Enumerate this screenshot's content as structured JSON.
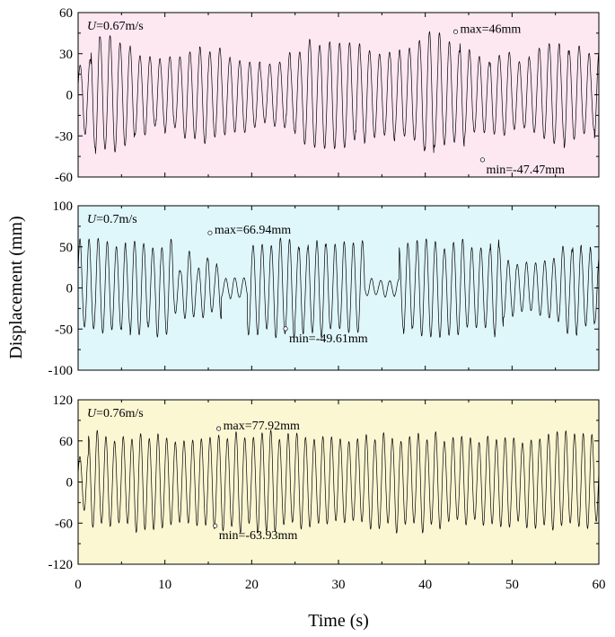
{
  "chart_data": {
    "type": "line",
    "xlabel": "Time  (s)",
    "ylabel": "Displacement  (mm)",
    "xlim": [
      0,
      60
    ],
    "x_ticks": [
      "0",
      "10",
      "20",
      "30",
      "40",
      "50",
      "60"
    ],
    "panels": [
      {
        "label_var": "U",
        "label_value": "=0.67m/s",
        "background": "#fde7f1",
        "ylim": [
          -60,
          60
        ],
        "y_ticks": [
          {
            "value": 60,
            "label": "60"
          },
          {
            "value": 30,
            "label": "30"
          },
          {
            "value": 0,
            "label": "0"
          },
          {
            "value": -30,
            "label": "-30"
          },
          {
            "value": -60,
            "label": "-60"
          }
        ],
        "series": [
          {
            "name": "displacement",
            "period_s": 1.15,
            "approx_amplitude_mm": [
              20,
              46
            ]
          }
        ],
        "max": {
          "time_s": 43.5,
          "value_mm": 46,
          "text": "max=46mm"
        },
        "min": {
          "time_s": 46.6,
          "value_mm": -47.47,
          "text": "min=-47.47mm"
        }
      },
      {
        "label_var": "U",
        "label_value": "=0.7m/s",
        "background": "#dff6fa",
        "ylim": [
          -100,
          100
        ],
        "y_ticks": [
          {
            "value": 100,
            "label": "100"
          },
          {
            "value": 50,
            "label": "50"
          },
          {
            "value": 0,
            "label": "0"
          },
          {
            "value": -50,
            "label": "-50"
          },
          {
            "value": -100,
            "label": "-100"
          }
        ],
        "series": [
          {
            "name": "displacement",
            "period_s": 1.05,
            "approx_amplitude_mm": [
              5,
              67
            ]
          }
        ],
        "max": {
          "time_s": 15.2,
          "value_mm": 66.94,
          "text": "max=66.94mm"
        },
        "min": {
          "time_s": 23.9,
          "value_mm": -49.61,
          "text": "min=-49.61mm"
        }
      },
      {
        "label_var": "U",
        "label_value": "=0.76m/s",
        "background": "#fbf7d3",
        "ylim": [
          -120,
          120
        ],
        "y_ticks": [
          {
            "value": 120,
            "label": "120"
          },
          {
            "value": 60,
            "label": "60"
          },
          {
            "value": 0,
            "label": "0"
          },
          {
            "value": -60,
            "label": "-60"
          },
          {
            "value": -120,
            "label": "-120"
          }
        ],
        "series": [
          {
            "name": "displacement",
            "period_s": 1.0,
            "approx_amplitude_mm": [
              45,
              78
            ]
          }
        ],
        "max": {
          "time_s": 16.2,
          "value_mm": 77.92,
          "text": "max=77.92mm"
        },
        "min": {
          "time_s": 15.8,
          "value_mm": -63.93,
          "text": "min=-63.93mm"
        }
      }
    ]
  }
}
